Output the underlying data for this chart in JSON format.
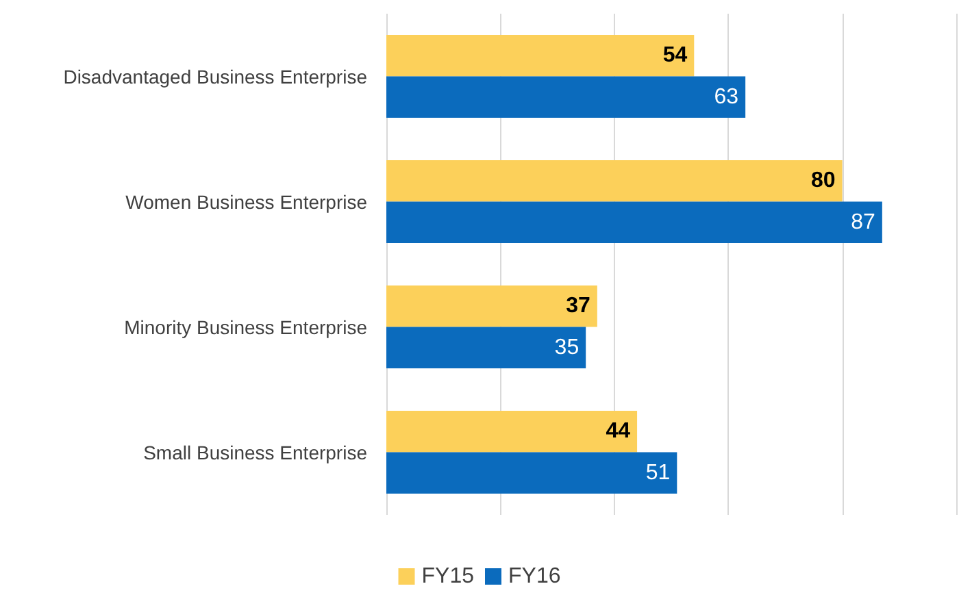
{
  "chart_data": {
    "type": "bar",
    "orientation": "horizontal",
    "categories": [
      "Disadvantaged Business Enterprise",
      "Women Business Enterprise",
      "Minority Business Enterprise",
      "Small Business Enterprise"
    ],
    "series": [
      {
        "name": "FY15",
        "color": "#fcd05a",
        "values": [
          54,
          80,
          37,
          44
        ]
      },
      {
        "name": "FY16",
        "color": "#0b6bbd",
        "values": [
          63,
          87,
          35,
          51
        ]
      }
    ],
    "xlim": [
      0,
      100
    ],
    "xticks": [
      {
        "value": 0,
        "label": null
      },
      {
        "value": 20,
        "label": null
      },
      {
        "value": 40,
        "label": null
      },
      {
        "value": 60,
        "label": null
      },
      {
        "value": 80,
        "label": null
      },
      {
        "value": 100,
        "label": null
      }
    ],
    "tick_labels": "y",
    "grid": "x",
    "legend": "bottom",
    "data_labels": true
  }
}
